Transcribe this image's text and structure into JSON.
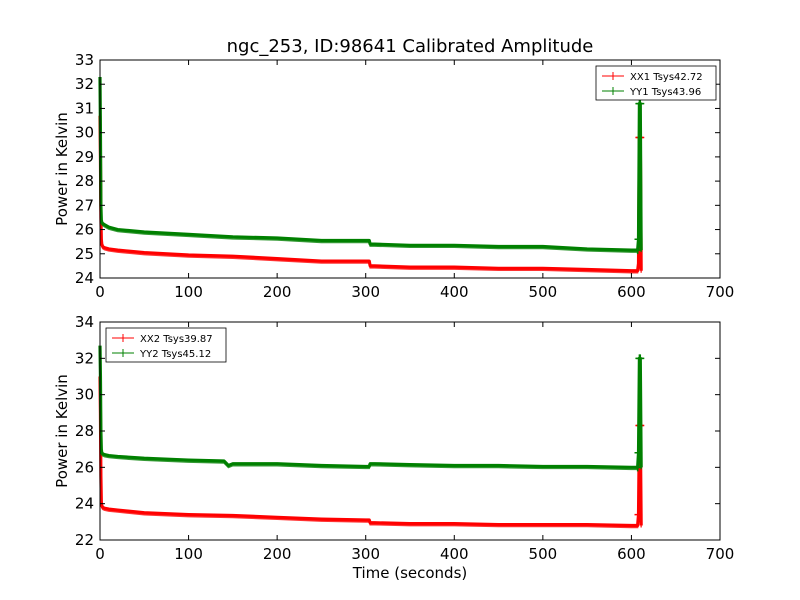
{
  "chart_data": [
    {
      "type": "line",
      "title": "ngc_253, ID:98641 Calibrated Amplitude",
      "xlabel": "",
      "ylabel": "Power in Kelvin",
      "xlim": [
        0,
        700
      ],
      "ylim": [
        24,
        33
      ],
      "xticks": [
        0,
        100,
        200,
        300,
        400,
        500,
        600,
        700
      ],
      "yticks": [
        24,
        25,
        26,
        27,
        28,
        29,
        30,
        31,
        32,
        33
      ],
      "grid": false,
      "legend": "top-right",
      "series": [
        {
          "name": "XX1 Tsys42.72",
          "color": "#ff0000",
          "x": [
            0,
            0.5,
            1,
            1.5,
            2,
            3,
            5,
            10,
            20,
            50,
            100,
            150,
            200,
            250,
            300,
            304,
            305,
            310,
            350,
            400,
            450,
            500,
            550,
            600,
            607,
            608,
            609,
            610,
            611
          ],
          "y": [
            30.7,
            29.0,
            26.5,
            25.6,
            25.4,
            25.3,
            25.25,
            25.2,
            25.15,
            25.05,
            24.95,
            24.9,
            24.8,
            24.7,
            24.7,
            24.7,
            24.5,
            24.5,
            24.45,
            24.45,
            24.4,
            24.4,
            24.35,
            24.3,
            24.3,
            24.6,
            29.8,
            29.8,
            24.3
          ]
        },
        {
          "name": "YY1 Tsys43.96",
          "color": "#008000",
          "x": [
            0,
            0.5,
            1,
            1.5,
            2,
            3,
            5,
            10,
            20,
            50,
            100,
            150,
            200,
            250,
            300,
            304,
            305,
            310,
            350,
            400,
            450,
            500,
            550,
            600,
            607,
            608,
            609,
            610,
            611
          ],
          "y": [
            32.3,
            30.0,
            27.0,
            26.4,
            26.3,
            26.25,
            26.2,
            26.1,
            26.0,
            25.9,
            25.8,
            25.7,
            25.65,
            25.55,
            25.55,
            25.55,
            25.4,
            25.4,
            25.35,
            25.35,
            25.3,
            25.3,
            25.2,
            25.15,
            25.15,
            25.6,
            31.2,
            31.2,
            25.15
          ]
        }
      ]
    },
    {
      "type": "line",
      "title": "",
      "xlabel": "Time (seconds)",
      "ylabel": "Power in Kelvin",
      "xlim": [
        0,
        700
      ],
      "ylim": [
        22,
        34
      ],
      "xticks": [
        0,
        100,
        200,
        300,
        400,
        500,
        600,
        700
      ],
      "yticks": [
        22,
        24,
        26,
        28,
        30,
        32,
        34
      ],
      "grid": false,
      "legend": "top-left",
      "series": [
        {
          "name": "XX2 Tsys39.87",
          "color": "#ff0000",
          "x": [
            0,
            0.5,
            1,
            1.5,
            2,
            3,
            5,
            10,
            20,
            50,
            100,
            150,
            200,
            250,
            300,
            304,
            305,
            310,
            350,
            400,
            450,
            500,
            550,
            600,
            607,
            608,
            609,
            610,
            611
          ],
          "y": [
            31.0,
            29.0,
            25.5,
            24.1,
            23.9,
            23.8,
            23.75,
            23.7,
            23.65,
            23.5,
            23.4,
            23.35,
            23.25,
            23.15,
            23.1,
            23.1,
            22.95,
            22.95,
            22.9,
            22.9,
            22.85,
            22.85,
            22.85,
            22.8,
            22.8,
            23.4,
            28.3,
            28.3,
            22.8
          ]
        },
        {
          "name": "YY2 Tsys45.12",
          "color": "#008000",
          "x": [
            0,
            0.5,
            1,
            1.5,
            2,
            3,
            5,
            10,
            20,
            50,
            100,
            140,
            145,
            150,
            200,
            250,
            300,
            304,
            305,
            310,
            350,
            400,
            450,
            500,
            550,
            600,
            607,
            608,
            609,
            610,
            611
          ],
          "y": [
            32.7,
            31.0,
            28.0,
            27.0,
            26.8,
            26.75,
            26.7,
            26.65,
            26.6,
            26.5,
            26.4,
            26.35,
            26.1,
            26.2,
            26.2,
            26.1,
            26.05,
            26.05,
            26.2,
            26.2,
            26.15,
            26.1,
            26.1,
            26.05,
            26.05,
            26.0,
            26.0,
            26.8,
            32.0,
            32.0,
            26.0
          ]
        }
      ]
    }
  ]
}
